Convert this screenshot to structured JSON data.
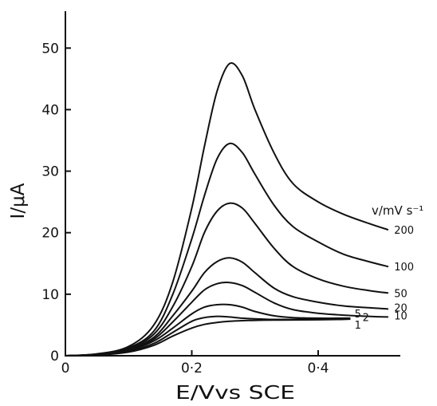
{
  "chart_data": {
    "type": "line",
    "xlabel": "E/Vvs SCE",
    "ylabel": "I/μA",
    "xlim": [
      0,
      0.53
    ],
    "ylim": [
      0,
      56
    ],
    "x_ticks": [
      0,
      0.2,
      0.4
    ],
    "x_tick_labels": [
      "0",
      "0·2",
      "0·4"
    ],
    "y_ticks": [
      0,
      10,
      20,
      30,
      40,
      50
    ],
    "y_tick_labels": [
      "0",
      "10",
      "20",
      "30",
      "40",
      "50"
    ],
    "legend_title": "v/mV s⁻¹",
    "grid": false,
    "series": [
      {
        "name": "200",
        "x": [
          0,
          0.05,
          0.1,
          0.14,
          0.17,
          0.2,
          0.22,
          0.24,
          0.26,
          0.28,
          0.3,
          0.33,
          0.36,
          0.4,
          0.44,
          0.48,
          0.51
        ],
        "y": [
          0,
          0.3,
          1.5,
          5,
          12,
          24,
          34,
          43,
          47.5,
          45.5,
          40,
          33,
          28,
          25,
          23,
          21.5,
          20.5
        ]
      },
      {
        "name": "100",
        "x": [
          0,
          0.05,
          0.1,
          0.14,
          0.17,
          0.2,
          0.22,
          0.24,
          0.26,
          0.28,
          0.3,
          0.33,
          0.36,
          0.4,
          0.44,
          0.48,
          0.51
        ],
        "y": [
          0,
          0.3,
          1.3,
          4,
          10,
          19,
          26,
          32,
          34.5,
          33,
          29.5,
          24.5,
          21,
          18.5,
          16.5,
          15.3,
          14.5
        ]
      },
      {
        "name": "50",
        "x": [
          0,
          0.05,
          0.1,
          0.14,
          0.17,
          0.2,
          0.22,
          0.24,
          0.26,
          0.28,
          0.3,
          0.33,
          0.36,
          0.4,
          0.44,
          0.48,
          0.51
        ],
        "y": [
          0,
          0.2,
          1.1,
          3.5,
          8,
          14.5,
          20,
          23.5,
          24.8,
          24,
          21.5,
          17.5,
          14.5,
          12.5,
          11.3,
          10.6,
          10.2
        ]
      },
      {
        "name": "20",
        "x": [
          0,
          0.05,
          0.1,
          0.14,
          0.17,
          0.2,
          0.22,
          0.24,
          0.26,
          0.28,
          0.3,
          0.33,
          0.36,
          0.4,
          0.44,
          0.48,
          0.51
        ],
        "y": [
          0,
          0.2,
          1,
          3,
          6.5,
          10.5,
          13.5,
          15.3,
          15.9,
          15.2,
          13.5,
          11,
          9.6,
          8.7,
          8.1,
          7.8,
          7.6
        ]
      },
      {
        "name": "10",
        "x": [
          0,
          0.05,
          0.1,
          0.14,
          0.17,
          0.2,
          0.22,
          0.24,
          0.26,
          0.28,
          0.3,
          0.33,
          0.36,
          0.4,
          0.44,
          0.48,
          0.51
        ],
        "y": [
          0,
          0.2,
          0.9,
          2.7,
          5.5,
          8.7,
          10.7,
          11.7,
          11.9,
          11.4,
          10.3,
          8.6,
          7.5,
          6.9,
          6.6,
          6.4,
          6.3
        ]
      },
      {
        "name": "5",
        "x": [
          0,
          0.05,
          0.1,
          0.14,
          0.17,
          0.2,
          0.22,
          0.24,
          0.26,
          0.28,
          0.3,
          0.33,
          0.36,
          0.4,
          0.43,
          0.45
        ],
        "y": [
          0,
          0.2,
          0.8,
          2.4,
          4.5,
          6.8,
          7.9,
          8.3,
          8.3,
          7.9,
          7.2,
          6.5,
          6.2,
          6.1,
          6.1,
          6.1
        ]
      },
      {
        "name": "2",
        "x": [
          0,
          0.05,
          0.1,
          0.14,
          0.17,
          0.2,
          0.22,
          0.24,
          0.26,
          0.28,
          0.3,
          0.33,
          0.36,
          0.4,
          0.43,
          0.45
        ],
        "y": [
          0,
          0.15,
          0.7,
          2,
          3.8,
          5.6,
          6.2,
          6.4,
          6.3,
          6.1,
          6,
          5.9,
          5.9,
          5.9,
          5.95,
          6
        ]
      },
      {
        "name": "1",
        "x": [
          0,
          0.05,
          0.1,
          0.14,
          0.17,
          0.2,
          0.22,
          0.24,
          0.26,
          0.28,
          0.3,
          0.33,
          0.36,
          0.4,
          0.43,
          0.45
        ],
        "y": [
          0,
          0.1,
          0.6,
          1.7,
          3.2,
          4.5,
          5.1,
          5.4,
          5.6,
          5.7,
          5.75,
          5.8,
          5.82,
          5.85,
          5.9,
          5.95
        ]
      }
    ],
    "series_labels": [
      "200",
      "100",
      "50",
      "20",
      "10",
      "5",
      "2",
      "1"
    ]
  }
}
